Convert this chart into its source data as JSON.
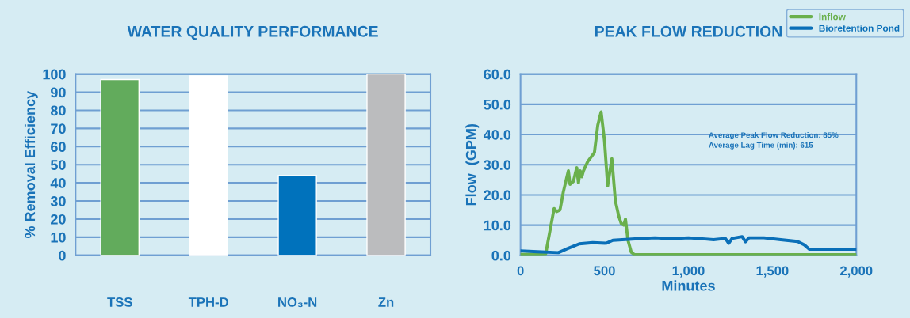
{
  "chart_data": [
    {
      "type": "bar",
      "title": "WATER QUALITY PERFORMANCE",
      "ylabel": "% Removal Efficiency",
      "categories": [
        "TSS",
        "TPH-D",
        "NO₃-N",
        "Zn"
      ],
      "values": [
        97,
        99,
        44,
        100
      ],
      "colors": [
        "#62ab5c",
        "#ffffff",
        "#0072bc",
        "#bbbcbe"
      ],
      "ylim": [
        0,
        100
      ],
      "yticks": [
        0,
        10,
        20,
        30,
        40,
        50,
        60,
        70,
        80,
        90,
        100
      ],
      "grid": "y"
    },
    {
      "type": "line",
      "title": "PEAK FLOW REDUCTION",
      "xlabel": "Minutes",
      "ylabel": "Flow  (GPM)",
      "series": [
        {
          "name": "Inflow",
          "color": "#6ab04c",
          "x": [
            0,
            150,
            200,
            215,
            235,
            255,
            285,
            295,
            315,
            335,
            345,
            355,
            365,
            375,
            400,
            440,
            460,
            480,
            500,
            519,
            544,
            565,
            585,
            600,
            615,
            625,
            640,
            660,
            680,
            2000
          ],
          "values": [
            0.3,
            0.5,
            15.5,
            14.5,
            15,
            21,
            28,
            23.5,
            24.5,
            29,
            24,
            28,
            26,
            28,
            31,
            34,
            43,
            47.5,
            38,
            23,
            32,
            18,
            13,
            10.5,
            10,
            12,
            5,
            1,
            0.2,
            0.2
          ]
        },
        {
          "name": "Bioretention Pond",
          "color": "#0a6fb8",
          "x": [
            0,
            100,
            225,
            270,
            350,
            430,
            510,
            550,
            700,
            800,
            900,
            1000,
            1100,
            1150,
            1220,
            1240,
            1260,
            1320,
            1340,
            1360,
            1450,
            1550,
            1650,
            1690,
            1720,
            2000
          ],
          "values": [
            1.5,
            1.2,
            0.9,
            2,
            3.8,
            4.2,
            4,
            5,
            5.5,
            5.8,
            5.5,
            5.8,
            5.4,
            5.2,
            5.6,
            4,
            5.6,
            6.2,
            4.5,
            5.8,
            5.8,
            5.2,
            4.6,
            3.5,
            2,
            2
          ]
        }
      ],
      "xlim": [
        0,
        2000
      ],
      "xticks": [
        0,
        500,
        {
          "value": 1000,
          "label": "1,000"
        },
        {
          "value": 1500,
          "label": "1,500"
        },
        {
          "value": 2000,
          "label": "2,000"
        }
      ],
      "ylim": [
        0,
        60
      ],
      "yticks": [
        {
          "value": 0,
          "label": "0.0"
        },
        {
          "value": 10,
          "label": "10.0"
        },
        {
          "value": 20,
          "label": "20.0"
        },
        {
          "value": 30,
          "label": "30.0"
        },
        {
          "value": 40,
          "label": "40.0"
        },
        {
          "value": 50,
          "label": "50.0"
        },
        {
          "value": 60,
          "label": "60.0"
        }
      ],
      "grid": "y",
      "legend": "top right",
      "marker": "none",
      "line_style": "solid",
      "annotations": [
        "Average Peak Flow Reduction: 85%",
        "Average Lag Time (min): 615"
      ]
    }
  ]
}
